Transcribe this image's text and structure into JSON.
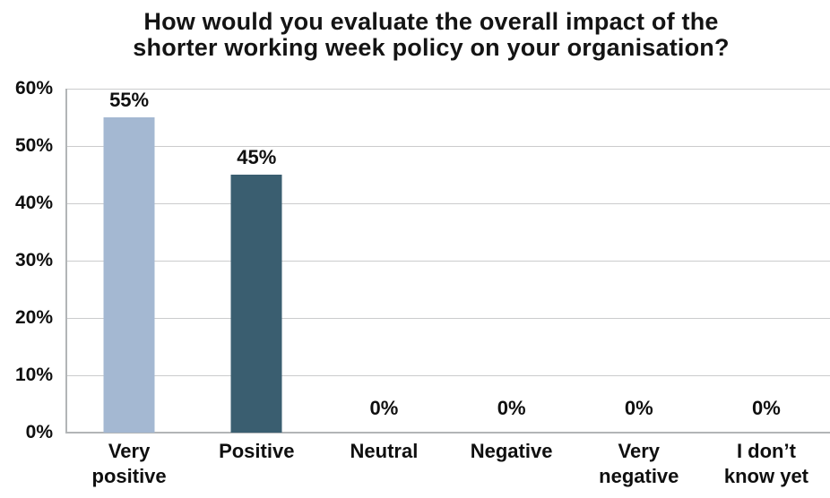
{
  "title": {
    "line1": "How would you evaluate the overall impact of the",
    "line2": "shorter working week policy on your organisation?"
  },
  "chart_data": {
    "type": "bar",
    "title": "How would you evaluate the overall impact of the shorter working week policy on your organisation?",
    "categories": [
      "Very positive",
      "Positive",
      "Neutral",
      "Negative",
      "Very negative",
      "I don’t know yet"
    ],
    "category_label_lines": [
      [
        "Very",
        "positive"
      ],
      [
        "Positive"
      ],
      [
        "Neutral"
      ],
      [
        "Negative"
      ],
      [
        "Very",
        "negative"
      ],
      [
        "I don’t",
        "know yet"
      ]
    ],
    "values": [
      55,
      45,
      0,
      0,
      0,
      0
    ],
    "value_labels": [
      "55%",
      "45%",
      "0%",
      "0%",
      "0%",
      "0%"
    ],
    "unit": "%",
    "ylim": [
      0,
      60
    ],
    "yticks": [
      0,
      10,
      20,
      30,
      40,
      50,
      60
    ],
    "ytick_labels": [
      "0%",
      "10%",
      "20%",
      "30%",
      "40%",
      "50%",
      "60%"
    ],
    "grid": "horizontal",
    "legend": "none",
    "bar_colors": [
      "#a4b8d2",
      "#3a5e70",
      "#3a5e70",
      "#3a5e70",
      "#3a5e70",
      "#3a5e70"
    ],
    "colors": {
      "bar_light": "#a4b8d2",
      "bar_dark": "#3a5e70",
      "gridline": "#cbcccd",
      "axis_line": "#b2b5b7",
      "text": "#0f0f0f",
      "background": "#ffffff"
    }
  }
}
